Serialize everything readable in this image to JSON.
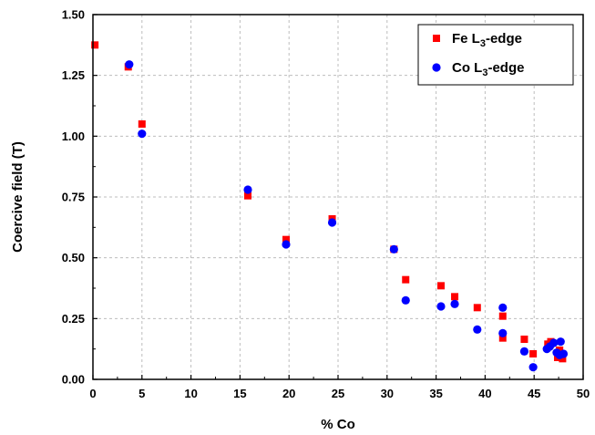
{
  "chart_data": {
    "type": "scatter",
    "xlabel": "% Co",
    "ylabel": "Coercive field (T)",
    "xlim": [
      0,
      50
    ],
    "ylim": [
      0,
      1.5
    ],
    "xticks": [
      "0",
      "5",
      "10",
      "15",
      "20",
      "25",
      "30",
      "35",
      "40",
      "45",
      "50"
    ],
    "yticks": [
      "0.00",
      "0.25",
      "0.50",
      "0.75",
      "1.00",
      "1.25",
      "1.50"
    ],
    "grid": true,
    "legend_position": "top-right",
    "series": [
      {
        "name": "Fe L3-edge",
        "name_main": "Fe L",
        "name_sub": "3",
        "name_tail": "-edge",
        "marker": "square",
        "color": "#ff0000",
        "x": [
          0.2,
          3.6,
          5.0,
          15.8,
          19.7,
          24.4,
          30.7,
          31.9,
          35.5,
          36.9,
          39.2,
          41.8,
          41.8,
          44.0,
          44.9,
          46.4,
          46.7,
          47.4,
          47.6,
          47.9
        ],
        "y": [
          1.375,
          1.285,
          1.05,
          0.755,
          0.575,
          0.66,
          0.535,
          0.41,
          0.385,
          0.34,
          0.295,
          0.26,
          0.17,
          0.165,
          0.105,
          0.145,
          0.155,
          0.09,
          0.12,
          0.085
        ]
      },
      {
        "name": "Co L3-edge",
        "name_main": "Co L",
        "name_sub": "3",
        "name_tail": "-edge",
        "marker": "circle",
        "color": "#0000ff",
        "x": [
          3.7,
          5.0,
          15.8,
          19.7,
          24.4,
          30.7,
          31.9,
          35.5,
          36.9,
          39.2,
          41.8,
          41.8,
          44.0,
          44.9,
          46.3,
          46.6,
          47.0,
          47.3,
          47.6,
          47.7,
          48.0
        ],
        "y": [
          1.295,
          1.01,
          0.78,
          0.555,
          0.645,
          0.535,
          0.325,
          0.3,
          0.31,
          0.205,
          0.295,
          0.19,
          0.115,
          0.05,
          0.125,
          0.135,
          0.15,
          0.11,
          0.1,
          0.155,
          0.105
        ]
      }
    ]
  }
}
